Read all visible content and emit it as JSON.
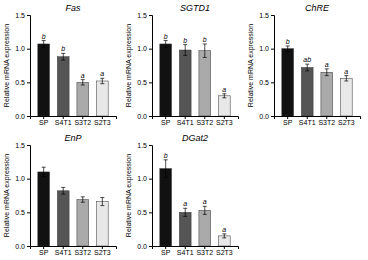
{
  "chart_data": [
    {
      "type": "bar",
      "title": "Fas",
      "categories": [
        "SP",
        "S4T1",
        "S3T2",
        "S2T3"
      ],
      "values": [
        1.07,
        0.88,
        0.5,
        0.52
      ],
      "errors": [
        0.05,
        0.05,
        0.04,
        0.04
      ],
      "annotations": [
        "b",
        "b",
        "a",
        "a"
      ],
      "colors": [
        "#111111",
        "#555555",
        "#aaaaaa",
        "#e8e8e8"
      ],
      "ylabel": "Relative mRNA expression",
      "ylim": [
        0.0,
        1.5
      ],
      "yticks": [
        {
          "value": 0,
          "label": "0.0"
        },
        0.5,
        {
          "value": 1,
          "label": "1.0"
        },
        1.5
      ]
    },
    {
      "type": "bar",
      "title": "SGTD1",
      "categories": [
        "SP",
        "S4T1",
        "S3T2",
        "S2T3"
      ],
      "values": [
        1.07,
        0.98,
        0.97,
        0.3
      ],
      "errors": [
        0.05,
        0.08,
        0.1,
        0.03
      ],
      "annotations": [
        "b",
        "b",
        "b",
        "a"
      ],
      "colors": [
        "#111111",
        "#555555",
        "#aaaaaa",
        "#e8e8e8"
      ],
      "ylabel": "Relative mRNA expression",
      "ylim": [
        0.0,
        1.5
      ],
      "yticks": [
        {
          "value": 0,
          "label": "0.0"
        },
        0.5,
        {
          "value": 1,
          "label": "1.0"
        },
        1.5
      ]
    },
    {
      "type": "bar",
      "title": "ChRE",
      "categories": [
        "SP",
        "S4T1",
        "S3T2",
        "S2T3"
      ],
      "values": [
        1.0,
        0.72,
        0.65,
        0.56
      ],
      "errors": [
        0.04,
        0.05,
        0.05,
        0.04
      ],
      "annotations": [
        "b",
        "ab",
        "a",
        "a"
      ],
      "colors": [
        "#111111",
        "#555555",
        "#aaaaaa",
        "#e8e8e8"
      ],
      "ylabel": "Relative mRNA expression",
      "ylim": [
        0.0,
        1.5
      ],
      "yticks": [
        {
          "value": 0,
          "label": "0.0"
        },
        0.5,
        {
          "value": 1,
          "label": "1.0"
        },
        1.5
      ]
    },
    {
      "type": "bar",
      "title": "EnP",
      "categories": [
        "SP",
        "S4T1",
        "S3T2",
        "S2T3"
      ],
      "values": [
        1.1,
        0.82,
        0.69,
        0.66
      ],
      "errors": [
        0.07,
        0.05,
        0.04,
        0.06
      ],
      "colors": [
        "#111111",
        "#555555",
        "#aaaaaa",
        "#e8e8e8"
      ],
      "ylabel": "Relative mRNA expression",
      "ylim": [
        0.0,
        1.5
      ],
      "yticks": [
        {
          "value": 0,
          "label": "0.0"
        },
        0.5,
        {
          "value": 1,
          "label": "1.0"
        },
        1.5
      ]
    },
    {
      "type": "bar",
      "title": "DGat2",
      "categories": [
        "SP",
        "S4T1",
        "S3T2",
        "S2T3"
      ],
      "values": [
        1.15,
        0.5,
        0.53,
        0.15
      ],
      "errors": [
        0.13,
        0.06,
        0.06,
        0.03
      ],
      "annotations": [
        "b",
        "a",
        "a",
        "a"
      ],
      "colors": [
        "#111111",
        "#555555",
        "#aaaaaa",
        "#e8e8e8"
      ],
      "ylabel": "Relative mRNA expression",
      "ylim": [
        0.0,
        1.5
      ],
      "yticks": [
        {
          "value": 0,
          "label": "0.0"
        },
        0.5,
        {
          "value": 1,
          "label": "1.0"
        },
        1.5
      ]
    }
  ]
}
